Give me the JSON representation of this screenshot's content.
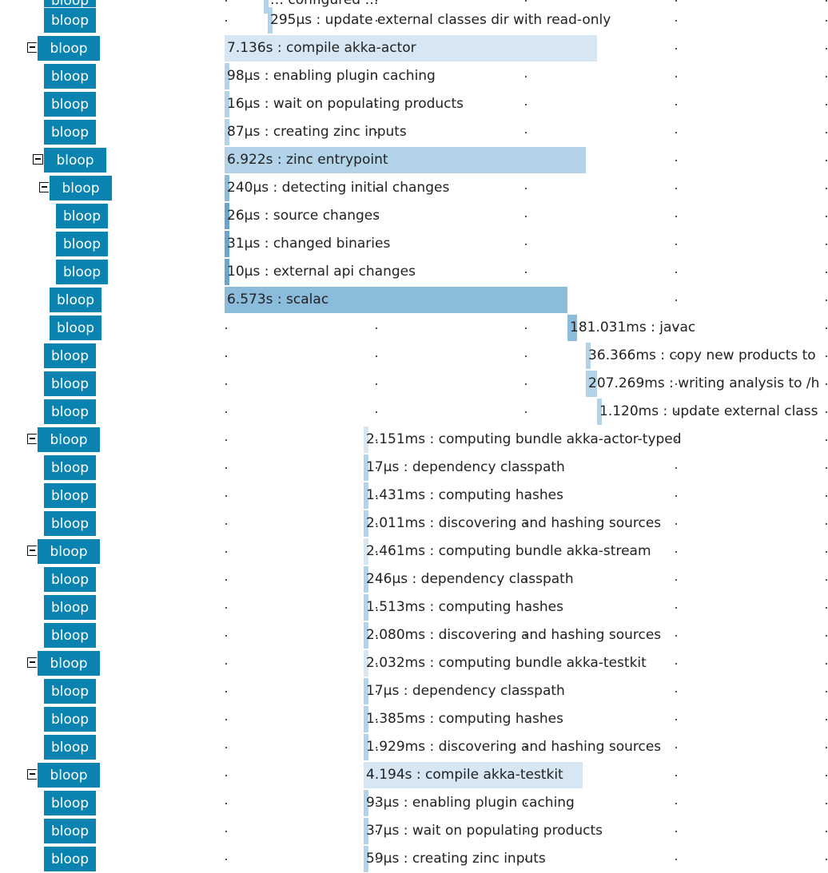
{
  "span_label": "bloop",
  "rows": [
    {
      "label": "… configured …",
      "depth": 3,
      "toggle": false
    },
    {
      "label": "295µs : update external classes dir with read-only",
      "depth": 1,
      "toggle": false
    },
    {
      "label": "7.136s : compile akka-actor",
      "depth": 0,
      "toggle": true
    },
    {
      "label": "98µs : enabling plugin caching",
      "depth": 1,
      "toggle": false
    },
    {
      "label": "16µs : wait on populating products",
      "depth": 1,
      "toggle": false
    },
    {
      "label": "87µs : creating zinc inputs",
      "depth": 1,
      "toggle": false
    },
    {
      "label": "6.922s : zinc entrypoint",
      "depth": 1,
      "toggle": true
    },
    {
      "label": "240µs : detecting initial changes",
      "depth": 2,
      "toggle": true
    },
    {
      "label": "26µs : source changes",
      "depth": 3,
      "toggle": false
    },
    {
      "label": "31µs : changed binaries",
      "depth": 3,
      "toggle": false
    },
    {
      "label": "10µs : external api changes",
      "depth": 3,
      "toggle": false
    },
    {
      "label": "6.573s : scalac",
      "depth": 2,
      "toggle": false
    },
    {
      "label": "181.031ms : javac",
      "depth": 2,
      "toggle": false
    },
    {
      "label": "36.366ms : copy new products to",
      "depth": 1,
      "toggle": false
    },
    {
      "label": "207.269ms : writing analysis to /h",
      "depth": 1,
      "toggle": false
    },
    {
      "label": "1.120ms : update external class",
      "depth": 1,
      "toggle": false
    },
    {
      "label": "2.151ms : computing bundle akka-actor-typed",
      "depth": 0,
      "toggle": true
    },
    {
      "label": "17µs : dependency classpath",
      "depth": 1,
      "toggle": false
    },
    {
      "label": "1.431ms : computing hashes",
      "depth": 1,
      "toggle": false
    },
    {
      "label": "2.011ms : discovering and hashing sources",
      "depth": 1,
      "toggle": false
    },
    {
      "label": "2.461ms : computing bundle akka-stream",
      "depth": 0,
      "toggle": true
    },
    {
      "label": "246µs : dependency classpath",
      "depth": 1,
      "toggle": false
    },
    {
      "label": "1.513ms : computing hashes",
      "depth": 1,
      "toggle": false
    },
    {
      "label": "2.080ms : discovering and hashing sources",
      "depth": 1,
      "toggle": false
    },
    {
      "label": "2.032ms : computing bundle akka-testkit",
      "depth": 0,
      "toggle": true
    },
    {
      "label": "17µs : dependency classpath",
      "depth": 1,
      "toggle": false
    },
    {
      "label": "1.385ms : computing hashes",
      "depth": 1,
      "toggle": false
    },
    {
      "label": "1.929ms : discovering and hashing sources",
      "depth": 1,
      "toggle": false
    },
    {
      "label": "4.194s : compile akka-testkit",
      "depth": 0,
      "toggle": true
    },
    {
      "label": "93µs : enabling plugin caching",
      "depth": 1,
      "toggle": false
    },
    {
      "label": "37µs : wait on populating products",
      "depth": 1,
      "toggle": false
    },
    {
      "label": "59µs : creating zinc inputs",
      "depth": 1,
      "toggle": false
    }
  ],
  "colors": {
    "badge": "#0a83b0",
    "bar_light": "#d6e7f3",
    "bar_mid": "#b3d4e8",
    "bar_dark": "#8bbcdc",
    "bar_darker": "#6aa5cf"
  }
}
